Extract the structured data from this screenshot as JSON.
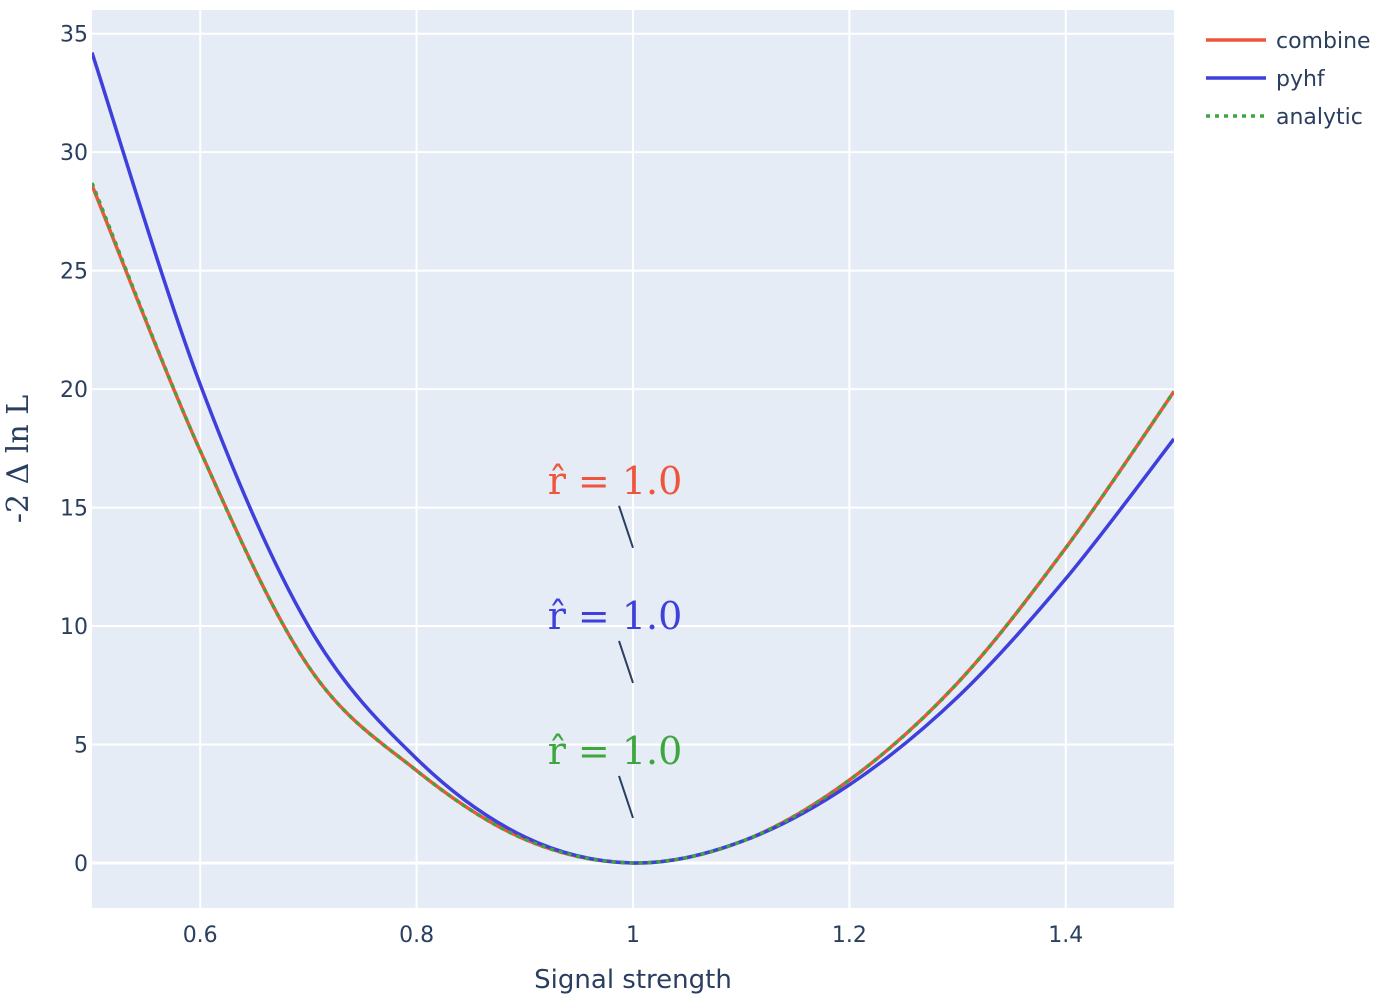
{
  "chart_data": {
    "type": "line",
    "xlabel": "Signal strength",
    "ylabel": "-2 Δ ln L",
    "xlim": [
      0.5,
      1.5
    ],
    "ylim": [
      -1.9,
      36
    ],
    "xticks": [
      0.6,
      0.8,
      1.0,
      1.2,
      1.4
    ],
    "xtick_labels": [
      "0.6",
      "0.8",
      "1",
      "1.2",
      "1.4"
    ],
    "yticks": [
      0,
      5,
      10,
      15,
      20,
      25,
      30,
      35
    ],
    "ytick_labels": [
      "0",
      "5",
      "10",
      "15",
      "20",
      "25",
      "30",
      "35"
    ],
    "grid": true,
    "legend_position": "top-right",
    "series": [
      {
        "name": "combine",
        "color": "#EF553B",
        "dash": "solid",
        "x": [
          0.5,
          0.6,
          0.7,
          0.8,
          0.9,
          1.0,
          1.1,
          1.2,
          1.3,
          1.4,
          1.5
        ],
        "y": [
          28.6,
          17.4,
          8.3,
          3.9,
          1.0,
          0.0,
          0.9,
          3.5,
          7.6,
          13.3,
          19.9
        ]
      },
      {
        "name": "pyhf",
        "color": "#3F3FDB",
        "dash": "solid",
        "x": [
          0.5,
          0.6,
          0.7,
          0.8,
          0.9,
          1.0,
          1.1,
          1.2,
          1.3,
          1.4,
          1.5
        ],
        "y": [
          34.2,
          20.2,
          10.0,
          4.4,
          1.1,
          0.0,
          0.9,
          3.3,
          7.0,
          12.0,
          17.9
        ]
      },
      {
        "name": "analytic",
        "color": "#3DA63D",
        "dash": "dot",
        "x": [
          0.5,
          0.6,
          0.7,
          0.8,
          0.9,
          1.0,
          1.1,
          1.2,
          1.3,
          1.4,
          1.5
        ],
        "y": [
          28.7,
          17.4,
          8.3,
          3.9,
          1.0,
          0.0,
          0.9,
          3.5,
          7.6,
          13.3,
          19.9
        ]
      }
    ],
    "annotations": [
      {
        "text": "r̂ = 1.0",
        "color": "#EF553B",
        "x": 1.0,
        "y": 13.3
      },
      {
        "text": "r̂ = 1.0",
        "color": "#3F3FDB",
        "x": 1.0,
        "y": 7.6
      },
      {
        "text": "r̂ = 1.0",
        "color": "#3DA63D",
        "x": 1.0,
        "y": 1.9
      }
    ]
  }
}
